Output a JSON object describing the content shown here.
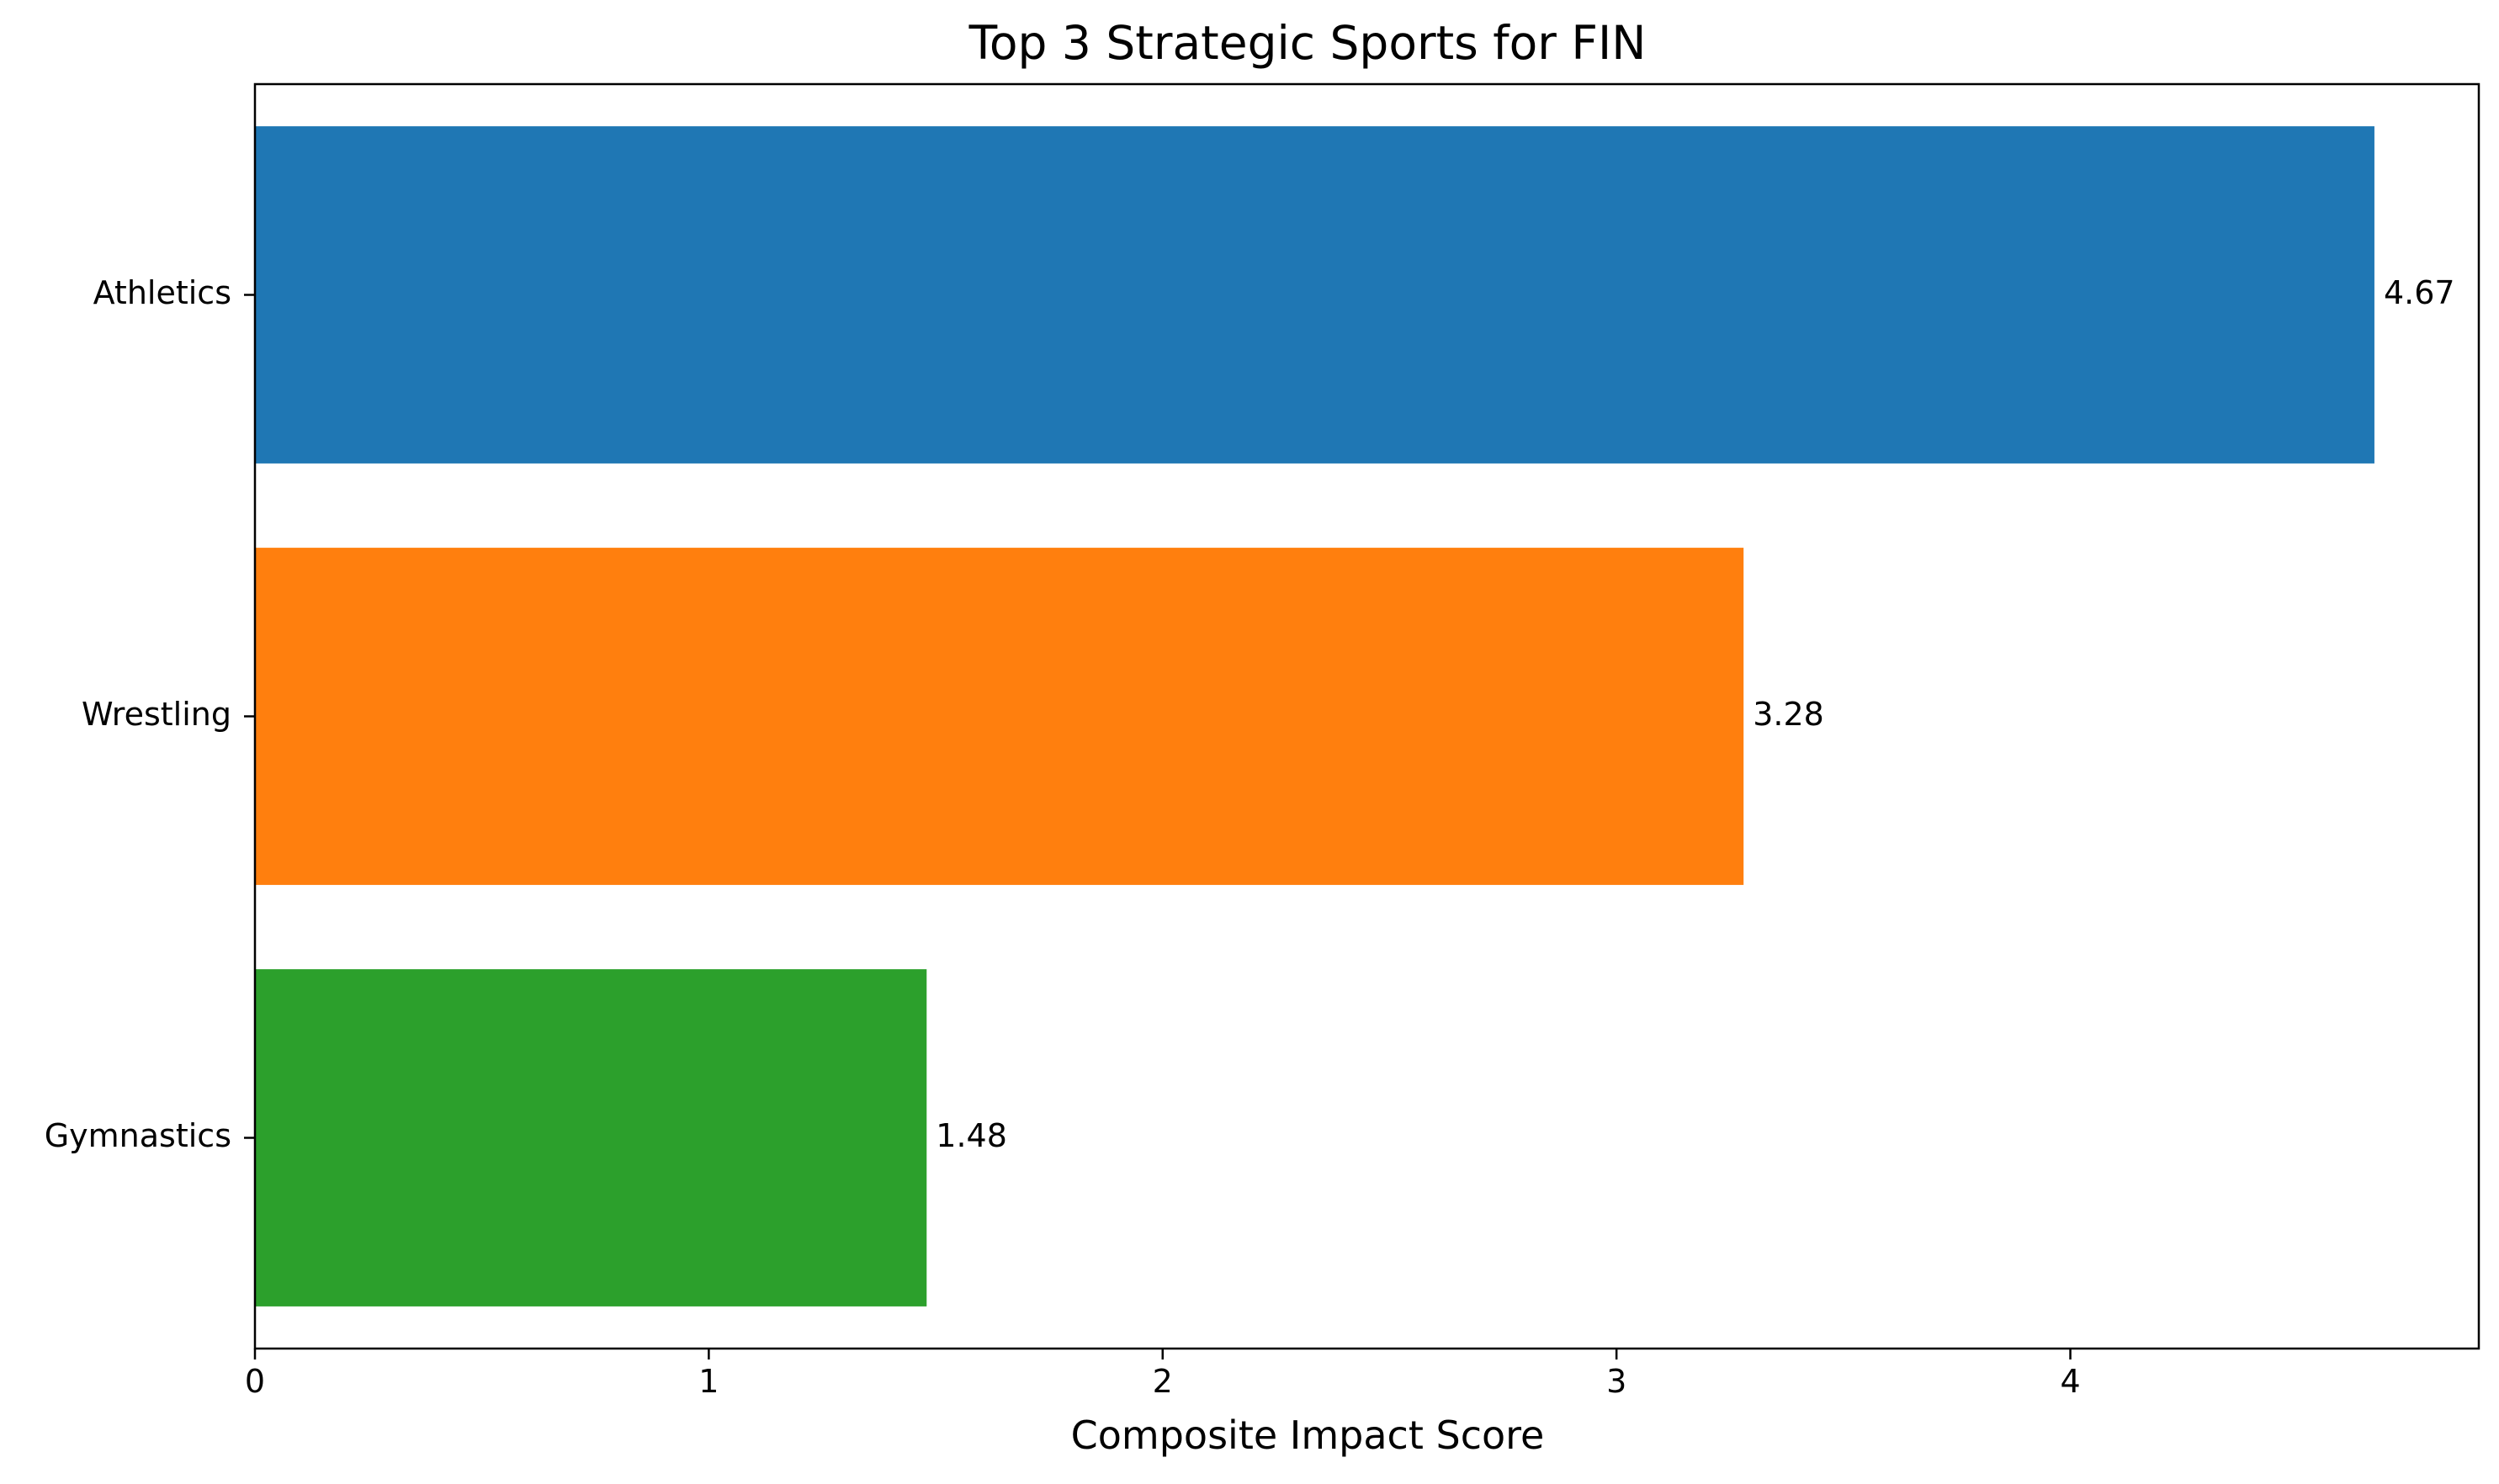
{
  "chart_data": {
    "type": "bar",
    "orientation": "horizontal",
    "title": "Top 3 Strategic Sports for FIN",
    "xlabel": "Composite Impact Score",
    "ylabel": "",
    "categories": [
      "Athletics",
      "Wrestling",
      "Gymnastics"
    ],
    "values": [
      4.67,
      3.28,
      1.48
    ],
    "value_labels": [
      "4.67",
      "3.28",
      "1.48"
    ],
    "colors": [
      "#1f77b4",
      "#ff7f0e",
      "#2ca02c"
    ],
    "xlim": [
      0,
      4.9
    ],
    "xticks": [
      0,
      1,
      2,
      3,
      4
    ],
    "xtick_labels": [
      "0",
      "1",
      "2",
      "3",
      "4"
    ],
    "grid": false,
    "legend": false
  }
}
